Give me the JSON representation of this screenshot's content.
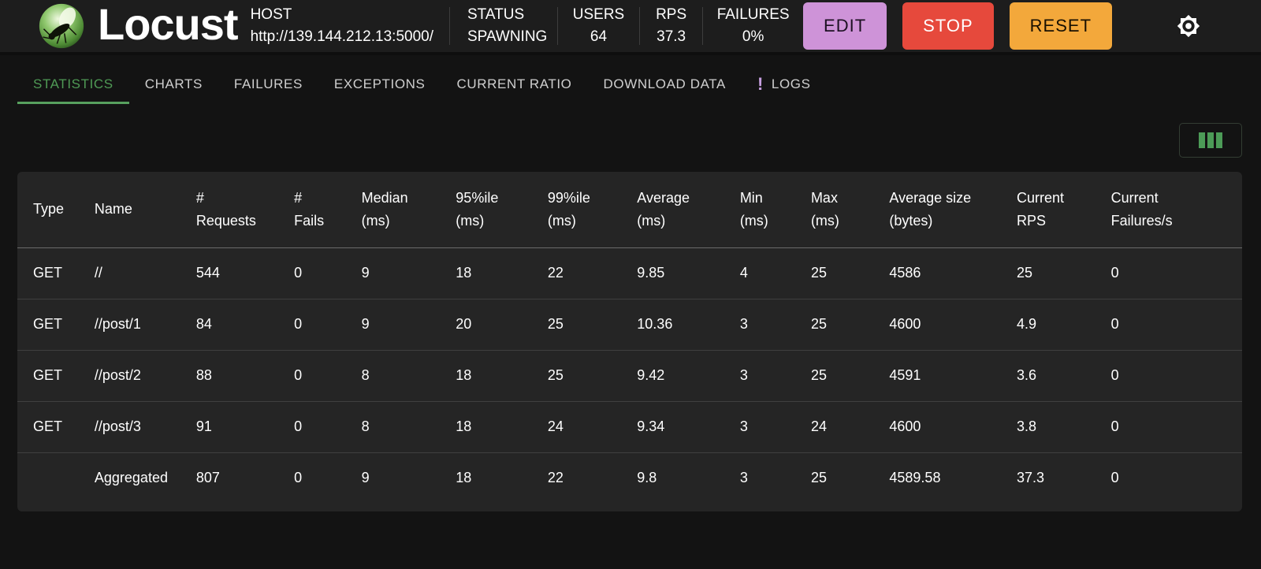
{
  "header": {
    "app_name": "Locust",
    "host": {
      "label": "HOST",
      "value": "http://139.144.212.13:5000/"
    },
    "stats": [
      {
        "label": "STATUS",
        "value": "SPAWNING"
      },
      {
        "label": "USERS",
        "value": "64"
      },
      {
        "label": "RPS",
        "value": "37.3"
      },
      {
        "label": "FAILURES",
        "value": "0%"
      }
    ],
    "buttons": {
      "edit": {
        "label": "EDIT",
        "bg": "#ce93d8",
        "fg": "#1c1022"
      },
      "stop": {
        "label": "STOP",
        "bg": "#e6493c",
        "fg": "#ffffff"
      },
      "reset": {
        "label": "RESET",
        "bg": "#f3a83b",
        "fg": "#181001"
      }
    }
  },
  "tabs": {
    "items": [
      {
        "label": "STATISTICS",
        "active": true
      },
      {
        "label": "CHARTS",
        "active": false
      },
      {
        "label": "FAILURES",
        "active": false
      },
      {
        "label": "EXCEPTIONS",
        "active": false
      },
      {
        "label": "CURRENT RATIO",
        "active": false
      },
      {
        "label": "DOWNLOAD DATA",
        "active": false
      },
      {
        "label": "LOGS",
        "active": false,
        "badge": "!"
      }
    ]
  },
  "colors": {
    "accent_green": "#4f9a55",
    "tab_indicator": "#57a05e",
    "logs_badge_purple": "#c79fe0",
    "columns_icon_green": "#4c9b57",
    "header_bg": "#1d1d1d",
    "page_bg": "#131313",
    "card_bg": "#252525"
  },
  "table": {
    "columns": [
      {
        "key": "type",
        "line1": "Type",
        "line2": ""
      },
      {
        "key": "name",
        "line1": "Name",
        "line2": ""
      },
      {
        "key": "requests",
        "line1": "#",
        "line2": "Requests"
      },
      {
        "key": "fails",
        "line1": "#",
        "line2": "Fails"
      },
      {
        "key": "median",
        "line1": "Median",
        "line2": "(ms)"
      },
      {
        "key": "p95",
        "line1": "95%ile",
        "line2": "(ms)"
      },
      {
        "key": "p99",
        "line1": "99%ile",
        "line2": "(ms)"
      },
      {
        "key": "avg",
        "line1": "Average",
        "line2": "(ms)"
      },
      {
        "key": "min",
        "line1": "Min",
        "line2": "(ms)"
      },
      {
        "key": "max",
        "line1": "Max",
        "line2": "(ms)"
      },
      {
        "key": "avg_size",
        "line1": "Average size",
        "line2": "(bytes)"
      },
      {
        "key": "current_rps",
        "line1": "Current",
        "line2": "RPS"
      },
      {
        "key": "current_failures",
        "line1": "Current",
        "line2": "Failures/s"
      }
    ],
    "col_keys": [
      "type",
      "name",
      "requests",
      "fails",
      "median",
      "p95",
      "p99",
      "avg",
      "min",
      "max",
      "avg_size",
      "current_rps",
      "current_failures"
    ],
    "rows": [
      {
        "type": "GET",
        "name": "//",
        "requests": "544",
        "fails": "0",
        "median": "9",
        "p95": "18",
        "p99": "22",
        "avg": "9.85",
        "min": "4",
        "max": "25",
        "avg_size": "4586",
        "current_rps": "25",
        "current_failures": "0"
      },
      {
        "type": "GET",
        "name": "//post/1",
        "requests": "84",
        "fails": "0",
        "median": "9",
        "p95": "20",
        "p99": "25",
        "avg": "10.36",
        "min": "3",
        "max": "25",
        "avg_size": "4600",
        "current_rps": "4.9",
        "current_failures": "0"
      },
      {
        "type": "GET",
        "name": "//post/2",
        "requests": "88",
        "fails": "0",
        "median": "8",
        "p95": "18",
        "p99": "25",
        "avg": "9.42",
        "min": "3",
        "max": "25",
        "avg_size": "4591",
        "current_rps": "3.6",
        "current_failures": "0"
      },
      {
        "type": "GET",
        "name": "//post/3",
        "requests": "91",
        "fails": "0",
        "median": "8",
        "p95": "18",
        "p99": "24",
        "avg": "9.34",
        "min": "3",
        "max": "24",
        "avg_size": "4600",
        "current_rps": "3.8",
        "current_failures": "0"
      },
      {
        "type": "",
        "name": "Aggregated",
        "requests": "807",
        "fails": "0",
        "median": "9",
        "p95": "18",
        "p99": "22",
        "avg": "9.8",
        "min": "3",
        "max": "25",
        "avg_size": "4589.58",
        "current_rps": "37.3",
        "current_failures": "0"
      }
    ]
  }
}
